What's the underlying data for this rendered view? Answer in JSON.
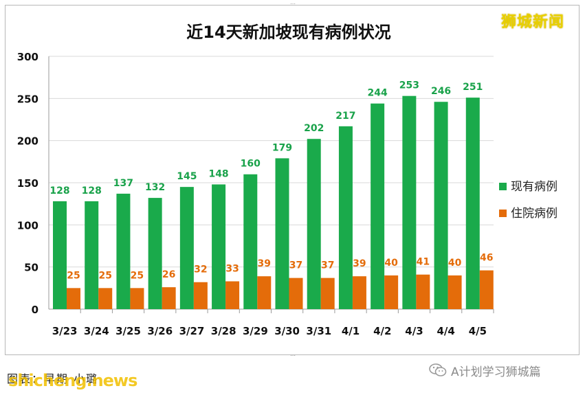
{
  "chart_data": {
    "type": "bar",
    "title": "近14天新加坡现有病例状况",
    "categories": [
      "3/23",
      "3/24",
      "3/25",
      "3/26",
      "3/27",
      "3/28",
      "3/29",
      "3/30",
      "3/31",
      "4/1",
      "4/2",
      "4/3",
      "4/4",
      "4/5"
    ],
    "series": [
      {
        "name": "现有病例",
        "color": "#1aaa4b",
        "label_color": "#19a24a",
        "values": [
          128,
          128,
          137,
          132,
          145,
          148,
          160,
          179,
          202,
          217,
          244,
          253,
          246,
          251
        ]
      },
      {
        "name": "住院病例",
        "color": "#e46c0a",
        "label_color": "#e46c0a",
        "values": [
          25,
          25,
          25,
          26,
          32,
          33,
          39,
          37,
          37,
          39,
          40,
          41,
          40,
          46
        ]
      }
    ],
    "ylim": [
      0,
      300
    ],
    "yticks": [
      0,
      50,
      100,
      150,
      200,
      250,
      300
    ],
    "grid": true,
    "legend": "right"
  },
  "brand": "狮城新闻",
  "caption": "图表：早期 小璐",
  "watermark": "shicheng.news",
  "wechat_account": "A计划学习狮城篇"
}
